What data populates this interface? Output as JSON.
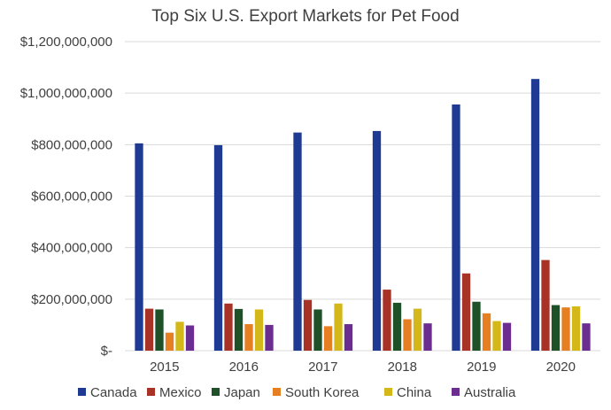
{
  "chart_data": {
    "type": "bar",
    "title": "Top Six U.S. Export Markets for Pet Food",
    "xlabel": "",
    "ylabel": "",
    "categories": [
      "2015",
      "2016",
      "2017",
      "2018",
      "2019",
      "2020"
    ],
    "ylim": [
      0,
      1200000000
    ],
    "yticks": [
      0,
      200000000,
      400000000,
      600000000,
      800000000,
      1000000000,
      1200000000
    ],
    "ytick_labels": [
      "$-",
      "$200,000,000",
      "$400,000,000",
      "$600,000,000",
      "$800,000,000",
      "$1,000,000,000",
      "$1,200,000,000"
    ],
    "grid": true,
    "legend_position": "bottom",
    "series": [
      {
        "name": "Canada",
        "color": "#1f3a93",
        "values": [
          805000000,
          798000000,
          847000000,
          853000000,
          956000000,
          1055000000
        ]
      },
      {
        "name": "Mexico",
        "color": "#a93226",
        "values": [
          163000000,
          183000000,
          197000000,
          237000000,
          300000000,
          352000000
        ]
      },
      {
        "name": "Japan",
        "color": "#1e5128",
        "values": [
          160000000,
          162000000,
          160000000,
          186000000,
          190000000,
          177000000
        ]
      },
      {
        "name": "South Korea",
        "color": "#e67e22",
        "values": [
          70000000,
          103000000,
          95000000,
          122000000,
          145000000,
          168000000
        ]
      },
      {
        "name": "China",
        "color": "#d4b81a",
        "values": [
          112000000,
          160000000,
          183000000,
          163000000,
          115000000,
          172000000
        ]
      },
      {
        "name": "Australia",
        "color": "#6c2d91",
        "values": [
          98000000,
          100000000,
          103000000,
          106000000,
          108000000,
          106000000
        ]
      }
    ]
  }
}
